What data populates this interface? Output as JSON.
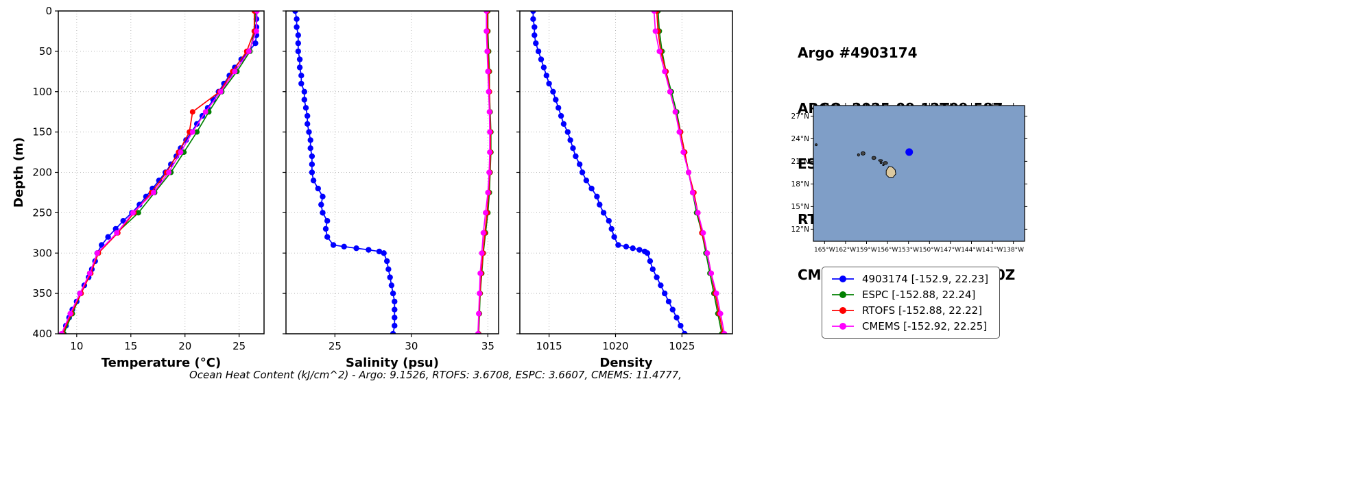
{
  "header": {
    "title": "Argo #4903174",
    "lines": [
      "ARGO: 2025-09-12T09:58Z",
      "ESPC : 2025-09-12T09:00Z",
      "RTOFS: 2025-09-12T12:00Z",
      "CMEMS: 2025-09-12T12:00Z"
    ]
  },
  "footer": {
    "text": "Ocean Heat Content (kJ/cm^2) - Argo: 9.1526,  RTOFS: 3.6708,  ESPC: 3.6607,  CMEMS: 11.4777,"
  },
  "legend": {
    "items": [
      {
        "label": "4903174 [-152.9, 22.23]",
        "color": "#0000ff"
      },
      {
        "label": "ESPC [-152.88, 22.24]",
        "color": "#008000"
      },
      {
        "label": "RTOFS [-152.88, 22.22]",
        "color": "#ff0000"
      },
      {
        "label": "CMEMS [-152.92, 22.25]",
        "color": "#ff00ff"
      }
    ]
  },
  "map": {
    "lon_range": [
      -166.6,
      -136.4
    ],
    "lat_range": [
      10.4,
      28.4
    ],
    "lon_ticks": [
      "165°W",
      "162°W",
      "159°W",
      "156°W",
      "153°W",
      "150°W",
      "147°W",
      "144°W",
      "141°W",
      "138°W"
    ],
    "lon_tick_values": [
      -165,
      -162,
      -159,
      -156,
      -153,
      -150,
      -147,
      -144,
      -141,
      -138
    ],
    "lat_ticks": [
      "12°N",
      "15°N",
      "18°N",
      "21°N",
      "24°N",
      "27°N"
    ],
    "lat_tick_values": [
      12,
      15,
      18,
      21,
      24,
      27
    ],
    "sea_color": "#7f9ec7",
    "land_color": "#dcc9a0",
    "float_marker": {
      "lon": -152.9,
      "lat": 22.23,
      "color": "#0000ff"
    },
    "islands": [
      {
        "name": "nihoa",
        "lon": -166.2,
        "lat": 23.2,
        "rx": 1.5,
        "ry": 1.5
      },
      {
        "name": "niihau",
        "lon": -160.15,
        "lat": 21.85,
        "rx": 1.6,
        "ry": 2.0
      },
      {
        "name": "kauai",
        "lon": -159.5,
        "lat": 22.05,
        "rx": 3.0,
        "ry": 2.6
      },
      {
        "name": "oahu",
        "lon": -157.95,
        "lat": 21.45,
        "rx": 3.0,
        "ry": 2.4
      },
      {
        "name": "molokai",
        "lon": -157.0,
        "lat": 21.12,
        "rx": 3.0,
        "ry": 1.3
      },
      {
        "name": "lanai",
        "lon": -156.92,
        "lat": 20.82,
        "rx": 1.6,
        "ry": 1.2
      },
      {
        "name": "kahoolawe",
        "lon": -156.6,
        "lat": 20.53,
        "rx": 1.3,
        "ry": 1.0
      },
      {
        "name": "maui",
        "lon": -156.3,
        "lat": 20.78,
        "rx": 3.2,
        "ry": 2.2
      },
      {
        "name": "hawaii",
        "lon": -155.5,
        "lat": 19.6,
        "type": "big"
      }
    ]
  },
  "chart_data": {
    "type": "line",
    "ylabel": "Depth (m)",
    "ylim": [
      0,
      400
    ],
    "y_inverted": true,
    "yticks": [
      0,
      50,
      100,
      150,
      200,
      250,
      300,
      350,
      400
    ],
    "grid": true,
    "panels": [
      {
        "id": "temperature",
        "xlabel": "Temperature (°C)",
        "xlim": [
          8.3,
          27.3
        ],
        "xticks": [
          10,
          15,
          20,
          25
        ],
        "series": [
          {
            "name": "4903174",
            "color": "#0000ff",
            "marker_r": 4.2,
            "depths": [
              0,
              10,
              20,
              30,
              40,
              50,
              60,
              70,
              80,
              90,
              100,
              110,
              120,
              130,
              140,
              150,
              160,
              170,
              180,
              190,
              200,
              210,
              220,
              230,
              240,
              250,
              260,
              270,
              280,
              290,
              300,
              310,
              320,
              330,
              340,
              350,
              360,
              370,
              380,
              390,
              400
            ],
            "values": [
              26.6,
              26.6,
              26.6,
              26.6,
              26.5,
              25.9,
              25.2,
              24.6,
              24.1,
              23.6,
              23.1,
              22.6,
              22.1,
              21.6,
              21.1,
              20.6,
              20.1,
              19.6,
              19.2,
              18.7,
              18.2,
              17.6,
              17.0,
              16.4,
              15.8,
              15.1,
              14.3,
              13.6,
              12.9,
              12.3,
              11.9,
              11.7,
              11.4,
              11.1,
              10.7,
              10.3,
              10.0,
              9.6,
              9.3,
              9.0,
              8.8
            ]
          },
          {
            "name": "ESPC",
            "color": "#008000",
            "marker_r": 4,
            "depths": [
              0,
              25,
              50,
              75,
              100,
              125,
              150,
              175,
              200,
              225,
              250,
              275,
              300,
              325,
              350,
              375,
              400
            ],
            "values": [
              26.5,
              26.4,
              26.0,
              24.8,
              23.4,
              22.2,
              21.1,
              19.9,
              18.7,
              17.2,
              15.7,
              13.7,
              12.0,
              11.2,
              10.4,
              9.6,
              8.8
            ]
          },
          {
            "name": "RTOFS",
            "color": "#ff0000",
            "marker_r": 4,
            "depths": [
              0,
              25,
              50,
              75,
              100,
              125,
              150,
              175,
              200,
              225,
              250,
              275,
              300,
              325,
              350,
              375,
              400
            ],
            "values": [
              26.4,
              26.4,
              25.7,
              24.4,
              23.2,
              20.7,
              20.4,
              19.4,
              18.3,
              16.9,
              15.3,
              13.8,
              12.0,
              11.3,
              10.4,
              9.5,
              8.7
            ]
          },
          {
            "name": "CMEMS",
            "color": "#ff00ff",
            "marker_r": 4,
            "depths": [
              0,
              25,
              50,
              75,
              100,
              125,
              150,
              175,
              200,
              225,
              250,
              275,
              300,
              325,
              350,
              375,
              400
            ],
            "values": [
              26.65,
              26.6,
              25.9,
              24.6,
              23.3,
              21.9,
              20.7,
              19.6,
              18.5,
              17.1,
              15.2,
              13.7,
              11.9,
              11.2,
              10.3,
              9.4,
              8.6
            ]
          }
        ]
      },
      {
        "id": "salinity",
        "xlabel": "Salinity (psu)",
        "xlim": [
          21.8,
          35.7
        ],
        "xticks": [
          25,
          30,
          35
        ],
        "series": [
          {
            "name": "4903174",
            "color": "#0000ff",
            "marker_r": 4.2,
            "depths": [
              0,
              10,
              20,
              30,
              40,
              50,
              60,
              70,
              80,
              90,
              100,
              110,
              120,
              130,
              140,
              150,
              160,
              170,
              180,
              190,
              200,
              210,
              220,
              230,
              240,
              250,
              260,
              270,
              280,
              290,
              292,
              294,
              296,
              298,
              300,
              310,
              320,
              330,
              340,
              350,
              360,
              370,
              380,
              390,
              400
            ],
            "values": [
              22.4,
              22.5,
              22.5,
              22.6,
              22.6,
              22.6,
              22.7,
              22.7,
              22.8,
              22.8,
              23.0,
              23.0,
              23.1,
              23.2,
              23.2,
              23.3,
              23.4,
              23.4,
              23.5,
              23.5,
              23.5,
              23.6,
              23.9,
              24.2,
              24.1,
              24.2,
              24.5,
              24.4,
              24.5,
              24.9,
              25.6,
              26.4,
              27.2,
              27.9,
              28.2,
              28.4,
              28.5,
              28.6,
              28.7,
              28.8,
              28.9,
              28.9,
              28.9,
              28.9,
              28.8
            ]
          },
          {
            "name": "ESPC",
            "color": "#008000",
            "marker_r": 4,
            "depths": [
              0,
              25,
              50,
              75,
              100,
              125,
              150,
              175,
              200,
              225,
              250,
              275,
              300,
              325,
              350,
              375,
              400
            ],
            "values": [
              35.0,
              35.0,
              35.05,
              35.1,
              35.1,
              35.15,
              35.2,
              35.2,
              35.15,
              35.1,
              35.0,
              34.85,
              34.7,
              34.6,
              34.5,
              34.45,
              34.4
            ]
          },
          {
            "name": "RTOFS",
            "color": "#ff0000",
            "marker_r": 4,
            "depths": [
              0,
              25,
              50,
              75,
              100,
              125,
              150,
              175,
              200,
              225,
              250,
              275,
              300,
              325,
              350,
              375,
              400
            ],
            "values": [
              34.97,
              34.97,
              35.0,
              35.07,
              35.1,
              35.12,
              35.17,
              35.17,
              35.12,
              35.05,
              34.95,
              34.8,
              34.68,
              34.57,
              34.48,
              34.42,
              34.38
            ]
          },
          {
            "name": "CMEMS",
            "color": "#ff00ff",
            "marker_r": 4,
            "depths": [
              0,
              25,
              50,
              75,
              100,
              125,
              150,
              175,
              200,
              225,
              250,
              275,
              300,
              325,
              350,
              375,
              400
            ],
            "values": [
              34.9,
              34.9,
              34.95,
              35.0,
              35.05,
              35.1,
              35.12,
              35.12,
              35.08,
              35.0,
              34.85,
              34.7,
              34.6,
              34.5,
              34.45,
              34.4,
              34.35
            ]
          }
        ]
      },
      {
        "id": "density",
        "xlabel": "Density",
        "xlim": [
          1012.8,
          1028.8
        ],
        "xticks": [
          1015,
          1020,
          1025
        ],
        "series": [
          {
            "name": "4903174",
            "color": "#0000ff",
            "marker_r": 4.2,
            "depths": [
              0,
              10,
              20,
              30,
              40,
              50,
              60,
              70,
              80,
              90,
              100,
              110,
              120,
              130,
              140,
              150,
              160,
              170,
              180,
              190,
              200,
              210,
              220,
              230,
              240,
              250,
              260,
              270,
              280,
              290,
              292,
              294,
              296,
              298,
              300,
              310,
              320,
              330,
              340,
              350,
              360,
              370,
              380,
              390,
              400
            ],
            "values": [
              1013.8,
              1013.8,
              1013.9,
              1013.9,
              1014.0,
              1014.2,
              1014.4,
              1014.6,
              1014.8,
              1015.0,
              1015.3,
              1015.5,
              1015.7,
              1015.9,
              1016.1,
              1016.4,
              1016.6,
              1016.8,
              1017.0,
              1017.3,
              1017.5,
              1017.8,
              1018.2,
              1018.6,
              1018.8,
              1019.1,
              1019.5,
              1019.7,
              1019.9,
              1020.2,
              1020.8,
              1021.3,
              1021.8,
              1022.2,
              1022.4,
              1022.6,
              1022.8,
              1023.1,
              1023.4,
              1023.7,
              1024.0,
              1024.3,
              1024.6,
              1024.9,
              1025.2
            ]
          },
          {
            "name": "ESPC",
            "color": "#008000",
            "marker_r": 4,
            "depths": [
              0,
              25,
              50,
              75,
              100,
              125,
              150,
              175,
              200,
              225,
              250,
              275,
              300,
              325,
              350,
              375,
              400
            ],
            "values": [
              1023.2,
              1023.3,
              1023.5,
              1023.8,
              1024.2,
              1024.6,
              1024.9,
              1025.2,
              1025.5,
              1025.8,
              1026.1,
              1026.5,
              1026.8,
              1027.1,
              1027.4,
              1027.7,
              1028.0
            ]
          },
          {
            "name": "RTOFS",
            "color": "#ff0000",
            "marker_r": 4,
            "depths": [
              0,
              25,
              50,
              75,
              100,
              125,
              150,
              175,
              200,
              225,
              250,
              275,
              300,
              325,
              350,
              375,
              400
            ],
            "values": [
              1023.1,
              1023.2,
              1023.4,
              1023.8,
              1024.1,
              1024.5,
              1024.9,
              1025.2,
              1025.5,
              1025.9,
              1026.2,
              1026.5,
              1026.9,
              1027.2,
              1027.5,
              1027.8,
              1028.1
            ]
          },
          {
            "name": "CMEMS",
            "color": "#ff00ff",
            "marker_r": 4,
            "depths": [
              0,
              25,
              50,
              75,
              100,
              125,
              150,
              175,
              200,
              225,
              250,
              275,
              300,
              325,
              350,
              375,
              400
            ],
            "values": [
              1022.9,
              1023.0,
              1023.3,
              1023.7,
              1024.1,
              1024.5,
              1024.8,
              1025.1,
              1025.5,
              1025.8,
              1026.2,
              1026.6,
              1026.9,
              1027.2,
              1027.6,
              1027.9,
              1028.2
            ]
          }
        ]
      }
    ]
  }
}
